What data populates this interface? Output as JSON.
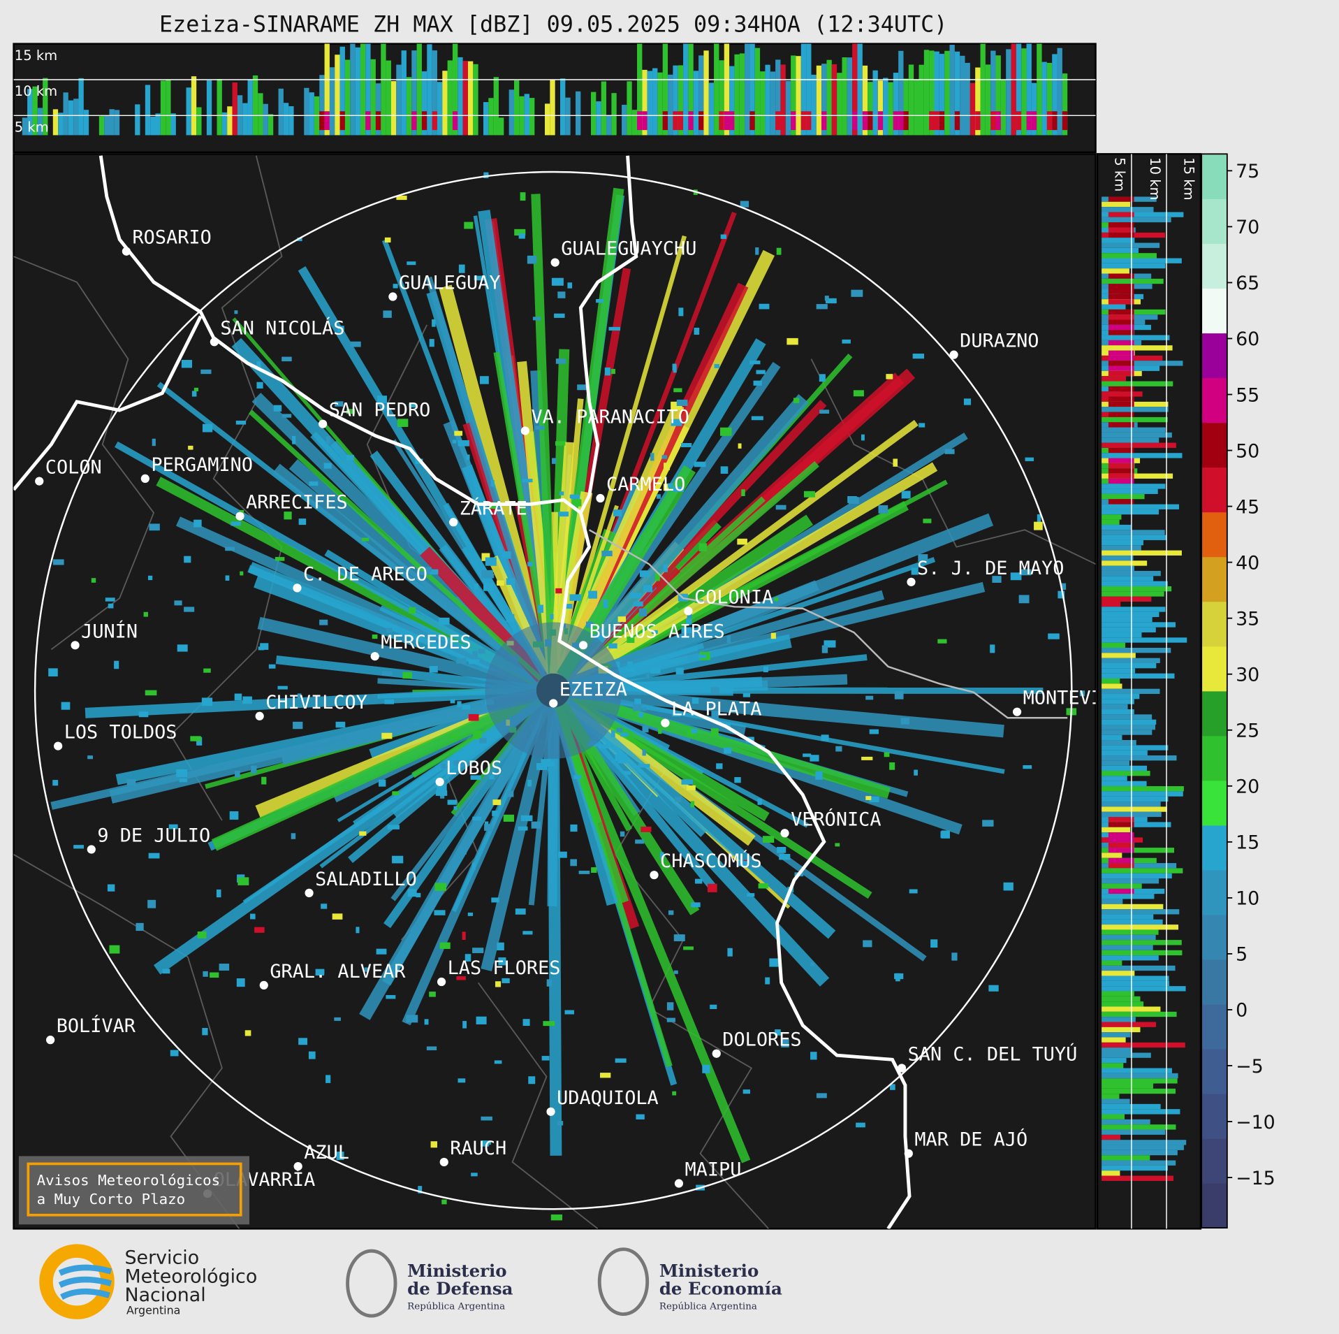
{
  "title": "Ezeiza-SINARAME ZH MAX [dBZ] 09.05.2025 09:34HOA (12:34UTC)",
  "profile": {
    "top_labels": [
      "15 km",
      "10 km",
      "5 km"
    ],
    "side_labels": [
      "5 km",
      "10 km",
      "15 km"
    ]
  },
  "cities": [
    "ROSARIO",
    "GUALEGUAYCHU",
    "GUALEGUAY",
    "SAN NICOLÁS",
    "DURAZNO",
    "SAN PEDRO",
    "VA. PARANACITO",
    "COLON",
    "PERGAMINO",
    "CARMELO",
    "ARRECIFES",
    "ZÁRATE",
    "S. J. DE MAYO",
    "C. DE ARECO",
    "COLONIA",
    "BUENOS AIRES",
    "JUNÍN",
    "MERCEDES",
    "EZEIZA",
    "MONTEVIDEO",
    "LA PLATA",
    "CHIVILCOY",
    "LOS TOLDOS",
    "LOBOS",
    "VERÓNICA",
    "9 DE JULIO",
    "CHASCOMÚS",
    "SALADILLO",
    "GRAL. ALVEAR",
    "LAS FLORES",
    "DOLORES",
    "SAN C. DEL TUYÚ",
    "BOLÍVAR",
    "UDAQUIOLA",
    "RAUCH",
    "AZUL",
    "MAR DE AJÓ",
    "OLAVARRÍA",
    "MAIPU"
  ],
  "colorbar": {
    "lim": [
      -19.5,
      76.5
    ],
    "ticks": [
      {
        "value": -15,
        "label": "−15"
      },
      {
        "value": -10,
        "label": "−10"
      },
      {
        "value": -5,
        "label": "−5"
      },
      0,
      5,
      10,
      15,
      20,
      25,
      30,
      35,
      40,
      45,
      50,
      55,
      60,
      65,
      70,
      75
    ],
    "colors": [
      "#3a3d6a",
      "#3d4677",
      "#3f5184",
      "#3f5d90",
      "#3d6a9a",
      "#3a78a4",
      "#3586b0",
      "#2f95bd",
      "#27a5cf",
      "#39e33a",
      "#2fc22e",
      "#27a02a",
      "#e8e83a",
      "#d6d23a",
      "#d4a020",
      "#e06010",
      "#d0102a",
      "#a00010",
      "#d00080",
      "#9a009a",
      "#f2faf6",
      "#c8eedd",
      "#a8e6cc",
      "#88dcba"
    ]
  },
  "notice": {
    "lines": [
      "Avisos Meteorológicos",
      "a Muy Corto Plazo"
    ]
  },
  "footer": {
    "smn": [
      "Servicio",
      "Meteorológico",
      "Nacional",
      "Argentina"
    ],
    "defensa": [
      "Ministerio",
      "de Defensa",
      "República Argentina"
    ],
    "economia": [
      "Ministerio",
      "de Economía",
      "República Argentina"
    ]
  }
}
